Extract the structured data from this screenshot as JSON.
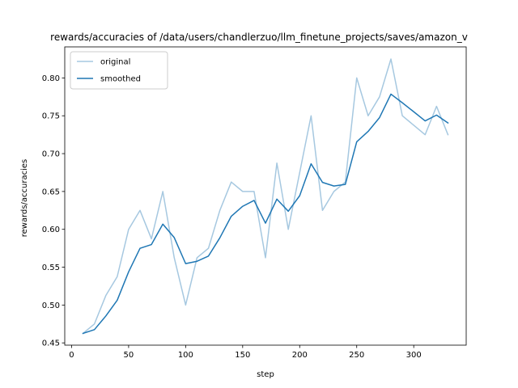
{
  "chart_data": {
    "type": "line",
    "title": "rewards/accuracies of /data/users/chandlerzuo/llm_finetune_projects/saves/amazon_v",
    "xlabel": "step",
    "ylabel": "rewards/accuracies",
    "xlim": [
      -6,
      346
    ],
    "ylim": [
      0.447,
      0.841
    ],
    "x_ticks": [
      0,
      50,
      100,
      150,
      200,
      250,
      300
    ],
    "y_ticks": [
      0.45,
      0.5,
      0.55,
      0.6,
      0.65,
      0.7,
      0.75,
      0.8
    ],
    "grid": false,
    "legend": "top-left",
    "x": [
      10,
      20,
      30,
      40,
      50,
      60,
      70,
      80,
      90,
      100,
      110,
      120,
      130,
      140,
      150,
      160,
      170,
      180,
      190,
      200,
      210,
      220,
      230,
      240,
      250,
      260,
      270,
      280,
      290,
      300,
      310,
      320,
      330
    ],
    "series": [
      {
        "name": "original",
        "color": "#a6c8e0",
        "values": [
          0.4625,
          0.475,
          0.5125,
          0.5375,
          0.6,
          0.625,
          0.5875,
          0.65,
          0.5625,
          0.5,
          0.5625,
          0.575,
          0.625,
          0.6625,
          0.65,
          0.65,
          0.5625,
          0.6875,
          0.6,
          0.675,
          0.75,
          0.625,
          0.65,
          0.6625,
          0.8,
          0.75,
          0.775,
          0.825,
          0.75,
          0.7375,
          0.725,
          0.7625,
          0.725
        ]
      },
      {
        "name": "smoothed",
        "color": "#1f77b4",
        "values": [
          0.4625,
          0.4675,
          0.4855,
          0.5063,
          0.5438,
          0.5749,
          0.5799,
          0.6069,
          0.5891,
          0.5547,
          0.5578,
          0.5647,
          0.5888,
          0.6173,
          0.6304,
          0.6382,
          0.6082,
          0.6399,
          0.6239,
          0.6444,
          0.6866,
          0.662,
          0.6572,
          0.6593,
          0.7156,
          0.7293,
          0.7476,
          0.7786,
          0.7672,
          0.7553,
          0.7432,
          0.7509,
          0.7405
        ]
      }
    ]
  }
}
